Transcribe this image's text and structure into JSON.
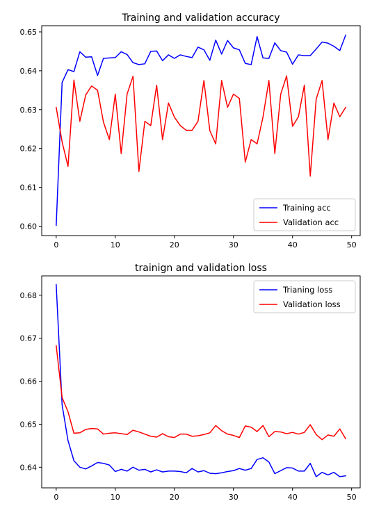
{
  "chart_data": [
    {
      "type": "line",
      "title": "Training and validation accuracy",
      "xlabel": "",
      "ylabel": "",
      "xlim": [
        -2.45,
        51.45
      ],
      "ylim": [
        0.5976,
        0.6516
      ],
      "xticks": [
        0,
        10,
        20,
        30,
        40,
        50
      ],
      "yticks": [
        0.6,
        0.61,
        0.62,
        0.63,
        0.64,
        0.65
      ],
      "ytick_format": 2,
      "legend_position": "lower-right",
      "grid": false,
      "x": [
        0,
        1,
        2,
        3,
        4,
        5,
        6,
        7,
        8,
        9,
        10,
        11,
        12,
        13,
        14,
        15,
        16,
        17,
        18,
        19,
        20,
        21,
        22,
        23,
        24,
        25,
        26,
        27,
        28,
        29,
        30,
        31,
        32,
        33,
        34,
        35,
        36,
        37,
        38,
        39,
        40,
        41,
        42,
        43,
        44,
        45,
        46,
        47,
        48,
        49
      ],
      "series": [
        {
          "name": "Training acc",
          "color": "#0000ff",
          "values": [
            0.6002,
            0.637,
            0.6403,
            0.6398,
            0.6449,
            0.6435,
            0.6436,
            0.6388,
            0.6432,
            0.6433,
            0.6434,
            0.6449,
            0.6442,
            0.6421,
            0.6416,
            0.6418,
            0.645,
            0.6451,
            0.6426,
            0.6441,
            0.6432,
            0.6441,
            0.6437,
            0.6434,
            0.6461,
            0.6454,
            0.6427,
            0.6479,
            0.6443,
            0.6478,
            0.6459,
            0.6454,
            0.6419,
            0.6416,
            0.6488,
            0.6433,
            0.6432,
            0.6472,
            0.6452,
            0.6448,
            0.6417,
            0.6441,
            0.6439,
            0.6439,
            0.6456,
            0.6474,
            0.6471,
            0.6463,
            0.6452,
            0.6492
          ]
        },
        {
          "name": "Validation acc",
          "color": "#ff0000",
          "values": [
            0.6306,
            0.6217,
            0.6154,
            0.6376,
            0.627,
            0.6338,
            0.6361,
            0.635,
            0.6268,
            0.6223,
            0.634,
            0.6187,
            0.634,
            0.6386,
            0.6141,
            0.627,
            0.6259,
            0.6363,
            0.6223,
            0.6317,
            0.6281,
            0.6259,
            0.6247,
            0.6247,
            0.627,
            0.6375,
            0.6246,
            0.6212,
            0.6375,
            0.6306,
            0.634,
            0.6329,
            0.6165,
            0.6223,
            0.6212,
            0.6281,
            0.6375,
            0.6187,
            0.634,
            0.6387,
            0.6257,
            0.6282,
            0.6363,
            0.6129,
            0.6327,
            0.6375,
            0.6223,
            0.6317,
            0.6282,
            0.6306
          ]
        }
      ]
    },
    {
      "type": "line",
      "title": "trainign and validation loss",
      "xlabel": "",
      "ylabel": "",
      "xlim": [
        -2.45,
        51.45
      ],
      "ylim": [
        0.6352,
        0.6845
      ],
      "xticks": [
        0,
        10,
        20,
        30,
        40,
        50
      ],
      "yticks": [
        0.64,
        0.65,
        0.66,
        0.67,
        0.68
      ],
      "ytick_format": 2,
      "legend_position": "upper-right",
      "grid": false,
      "x": [
        0,
        1,
        2,
        3,
        4,
        5,
        6,
        7,
        8,
        9,
        10,
        11,
        12,
        13,
        14,
        15,
        16,
        17,
        18,
        19,
        20,
        21,
        22,
        23,
        24,
        25,
        26,
        27,
        28,
        29,
        30,
        31,
        32,
        33,
        34,
        35,
        36,
        37,
        38,
        39,
        40,
        41,
        42,
        43,
        44,
        45,
        46,
        47,
        48,
        49
      ],
      "series": [
        {
          "name": "Trianing loss",
          "color": "#0000ff",
          "values": [
            0.6825,
            0.6545,
            0.6462,
            0.6415,
            0.64,
            0.6396,
            0.6403,
            0.6411,
            0.6409,
            0.6405,
            0.639,
            0.6395,
            0.6391,
            0.64,
            0.6393,
            0.6395,
            0.6389,
            0.6394,
            0.6389,
            0.6391,
            0.6391,
            0.639,
            0.6387,
            0.6397,
            0.6389,
            0.6392,
            0.6386,
            0.6385,
            0.6387,
            0.639,
            0.6392,
            0.6397,
            0.6393,
            0.6397,
            0.6418,
            0.6422,
            0.6412,
            0.6385,
            0.6392,
            0.6399,
            0.6398,
            0.6391,
            0.6391,
            0.6409,
            0.6378,
            0.6388,
            0.6382,
            0.6388,
            0.6378,
            0.638
          ]
        },
        {
          "name": "Validation loss",
          "color": "#ff0000",
          "values": [
            0.6683,
            0.6562,
            0.6529,
            0.6479,
            0.648,
            0.6488,
            0.649,
            0.6489,
            0.6477,
            0.6479,
            0.648,
            0.6478,
            0.6476,
            0.6486,
            0.6482,
            0.6477,
            0.6472,
            0.647,
            0.6478,
            0.6471,
            0.6469,
            0.6477,
            0.6477,
            0.6472,
            0.6473,
            0.6476,
            0.648,
            0.6497,
            0.6485,
            0.6477,
            0.6474,
            0.6469,
            0.6496,
            0.6493,
            0.6483,
            0.6497,
            0.6471,
            0.6483,
            0.6482,
            0.6478,
            0.6481,
            0.6477,
            0.6481,
            0.6499,
            0.6476,
            0.6464,
            0.6475,
            0.6472,
            0.6489,
            0.6466
          ]
        }
      ]
    }
  ]
}
